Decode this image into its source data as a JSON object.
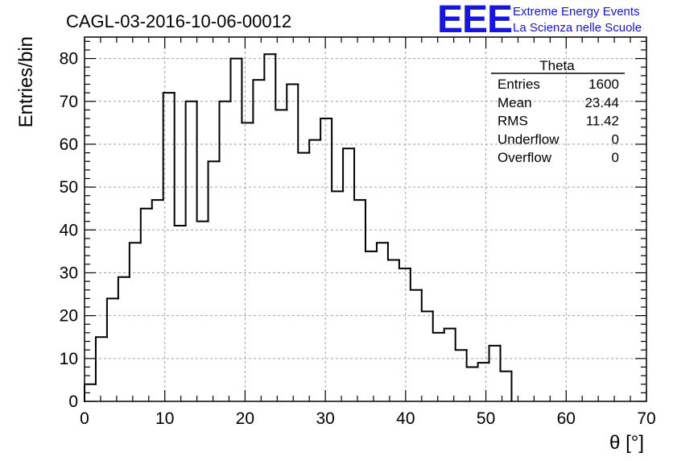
{
  "chart_data": {
    "type": "histogram",
    "title": "CAGL-03-2016-10-06-00012",
    "xlabel": "θ [°]",
    "ylabel": "Entries/bin",
    "xlim": [
      0,
      70
    ],
    "ylim": [
      0,
      85
    ],
    "grid": true,
    "bin_width": 1.4,
    "bin_edges_start": 0,
    "values": [
      4,
      15,
      24,
      29,
      37,
      45,
      47,
      72,
      41,
      70,
      42,
      56,
      70,
      80,
      65,
      75,
      81,
      68,
      74,
      58,
      61,
      66,
      49,
      59,
      47,
      35,
      37,
      33,
      31,
      26,
      21,
      16,
      17,
      12,
      8,
      9,
      13,
      7
    ],
    "x_ticks": [
      "0",
      "10",
      "20",
      "30",
      "40",
      "50",
      "60",
      "70"
    ],
    "y_ticks": [
      "0",
      "10",
      "20",
      "30",
      "40",
      "50",
      "60",
      "70",
      "80"
    ],
    "stats_box": {
      "title": "Theta",
      "rows": [
        {
          "label": "Entries",
          "value": "1600"
        },
        {
          "label": "Mean",
          "value": "23.44"
        },
        {
          "label": "RMS",
          "value": "11.42"
        },
        {
          "label": "Underflow",
          "value": "0"
        },
        {
          "label": "Overflow",
          "value": "0"
        }
      ],
      "placement": "top-right"
    },
    "line_color": "#000000",
    "grid_color": "#a0a0a0"
  },
  "logo": {
    "mark": "EEE",
    "line1": "Extreme Energy Events",
    "line2": "La Scienza nelle Scuole",
    "color": "#1515e6"
  }
}
